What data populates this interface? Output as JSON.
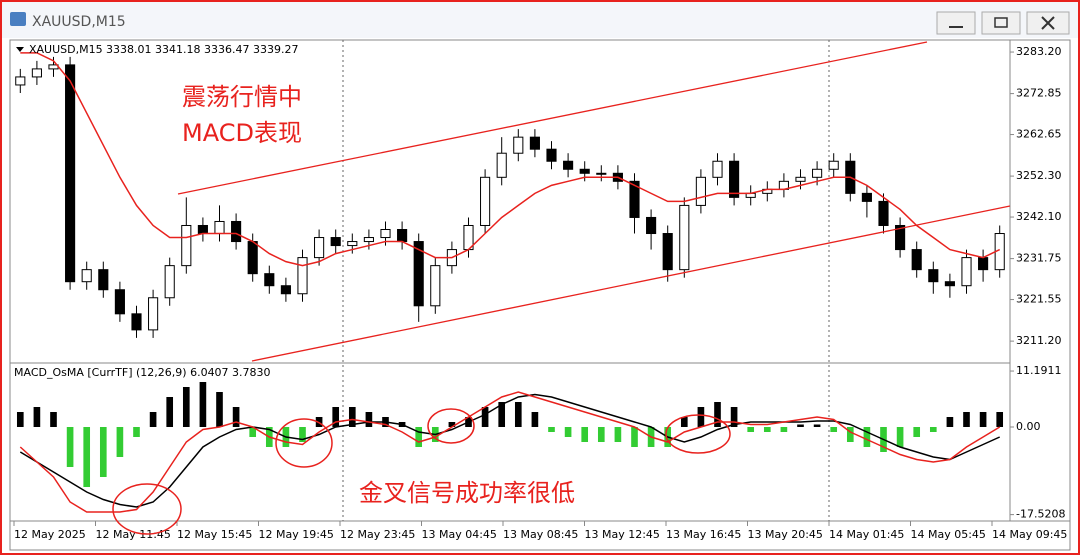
{
  "window": {
    "title": "XAUUSD,M15"
  },
  "x_axis": {
    "labels": [
      "12 May 2025",
      "12 May 11:45",
      "12 May 15:45",
      "12 May 19:45",
      "12 May 23:45",
      "13 May 04:45",
      "13 May 08:45",
      "13 May 12:45",
      "13 May 16:45",
      "13 May 20:45",
      "14 May 01:45",
      "14 May 05:45",
      "14 May 09:45"
    ]
  },
  "chart_data": [
    {
      "type": "candlestick",
      "title": "XAUUSD,M15",
      "quote": "3338.01 3341.18 3336.47 3339.27",
      "annotations": [
        "震荡行情中",
        "MACD表现"
      ],
      "up_color": "#ffffff",
      "down_color": "#000000",
      "open": [
        3275,
        3277,
        3279,
        3280,
        3226,
        3229,
        3224,
        3218,
        3214,
        3222,
        3230,
        3240,
        3238,
        3241,
        3236,
        3228,
        3225,
        3223,
        3232,
        3237,
        3235,
        3236,
        3237,
        3239,
        3236,
        3220,
        3230,
        3234,
        3240,
        3252,
        3258,
        3262,
        3259,
        3256,
        3254,
        3253,
        3253,
        3251,
        3242,
        3238,
        3229,
        3245,
        3252,
        3256,
        3247,
        3248,
        3249,
        3251,
        3252,
        3254,
        3256,
        3248,
        3246,
        3240,
        3234,
        3229,
        3226,
        3225,
        3232,
        3229
      ],
      "high": [
        3279,
        3281,
        3282,
        3282,
        3231,
        3231,
        3226,
        3220,
        3224,
        3232,
        3247,
        3242,
        3245,
        3243,
        3238,
        3230,
        3227,
        3234,
        3239,
        3239,
        3238,
        3239,
        3241,
        3241,
        3238,
        3232,
        3236,
        3242,
        3254,
        3262,
        3264,
        3264,
        3261,
        3258,
        3256,
        3255,
        3255,
        3253,
        3244,
        3240,
        3247,
        3254,
        3258,
        3258,
        3250,
        3251,
        3253,
        3254,
        3256,
        3258,
        3258,
        3250,
        3248,
        3242,
        3236,
        3231,
        3228,
        3234,
        3234,
        3240
      ],
      "low": [
        3273,
        3275,
        3277,
        3224,
        3224,
        3222,
        3216,
        3212,
        3212,
        3220,
        3228,
        3236,
        3236,
        3234,
        3226,
        3223,
        3221,
        3221,
        3230,
        3233,
        3233,
        3234,
        3235,
        3234,
        3216,
        3218,
        3228,
        3232,
        3238,
        3250,
        3256,
        3257,
        3254,
        3252,
        3251,
        3251,
        3249,
        3238,
        3234,
        3226,
        3227,
        3243,
        3250,
        3245,
        3245,
        3246,
        3247,
        3249,
        3250,
        3252,
        3246,
        3242,
        3238,
        3232,
        3227,
        3223,
        3222,
        3223,
        3226,
        3227
      ],
      "close": [
        3277,
        3279,
        3280,
        3226,
        3229,
        3224,
        3218,
        3214,
        3222,
        3230,
        3240,
        3238,
        3241,
        3236,
        3228,
        3225,
        3223,
        3232,
        3237,
        3235,
        3236,
        3237,
        3239,
        3236,
        3220,
        3230,
        3234,
        3240,
        3252,
        3258,
        3262,
        3259,
        3256,
        3254,
        3253,
        3253,
        3251,
        3242,
        3238,
        3229,
        3245,
        3252,
        3256,
        3247,
        3248,
        3249,
        3251,
        3252,
        3254,
        3256,
        3248,
        3246,
        3240,
        3234,
        3229,
        3226,
        3225,
        3232,
        3229,
        3238
      ],
      "series": [
        {
          "color": "#e8221e",
          "values": [
            3283,
            3283,
            3281,
            3276,
            3268,
            3260,
            3252,
            3245,
            3240,
            3237,
            3237,
            3238,
            3238,
            3238,
            3236,
            3233,
            3231,
            3230,
            3231,
            3233,
            3234,
            3235,
            3236,
            3236,
            3234,
            3232,
            3232,
            3234,
            3238,
            3242,
            3245,
            3248,
            3250,
            3251,
            3252,
            3252,
            3252,
            3250,
            3248,
            3246,
            3246,
            3247,
            3248,
            3248,
            3248,
            3249,
            3249,
            3250,
            3251,
            3252,
            3252,
            3250,
            3247,
            3244,
            3240,
            3237,
            3234,
            3233,
            3232,
            3234
          ]
        }
      ],
      "ylim": [
        3206,
        3285.7
      ],
      "yticks": [
        {
          "value": 3283.2,
          "label": "3283.20"
        },
        {
          "value": 3272.85,
          "label": "3272.85"
        },
        {
          "value": 3262.65,
          "label": "3262.65"
        },
        {
          "value": 3252.3,
          "label": "3252.30"
        },
        {
          "value": 3242.1,
          "label": "3242.10"
        },
        {
          "value": 3231.75,
          "label": "3231.75"
        },
        {
          "value": 3221.55,
          "label": "3221.55"
        },
        {
          "value": 3211.2,
          "label": "3211.20"
        }
      ]
    },
    {
      "type": "macd",
      "title": "MACD_OsMA [CurrTF] (12,26,9) 6.0407 3.7830",
      "annotations": [
        "金叉信号成功率很低"
      ],
      "positive_color": "#000000",
      "negative_color": "#33cc33",
      "histogram": [
        3,
        4,
        3,
        -8,
        -12,
        -10,
        -6,
        -2,
        3,
        6,
        8,
        9,
        7,
        4,
        -2,
        -4,
        -4,
        -3,
        2,
        4,
        4,
        3,
        2,
        1,
        -4,
        -3,
        1,
        2,
        4,
        5,
        5,
        3,
        -1,
        -2,
        -3,
        -3,
        -3,
        -4,
        -4,
        -4,
        2,
        4,
        5,
        4,
        -1,
        -1,
        -1,
        0.5,
        0.5,
        -1,
        -3,
        -4,
        -5,
        -4,
        -2,
        -1,
        2,
        3,
        3,
        3
      ],
      "series": [
        {
          "color": "#000000",
          "values": [
            -5,
            -7,
            -9,
            -11,
            -13,
            -14.5,
            -15.5,
            -16,
            -15,
            -12,
            -8,
            -4,
            -2,
            -0.5,
            0,
            -0.5,
            -2,
            -2.5,
            -1.5,
            0,
            0.5,
            1,
            1,
            0.5,
            -1,
            -1.5,
            -0.5,
            1,
            2.5,
            4.5,
            6,
            6.5,
            6,
            5,
            4,
            3,
            2,
            1,
            0,
            -2,
            -3,
            -2,
            -0.5,
            0.5,
            1,
            1,
            1,
            1,
            1.2,
            1.2,
            0.5,
            -1,
            -2.5,
            -4,
            -5,
            -6,
            -6.5,
            -5,
            -3.5,
            -2
          ]
        },
        {
          "color": "#e8221e",
          "values": [
            -4,
            -7,
            -10,
            -15,
            -17,
            -17,
            -17,
            -16.5,
            -13,
            -8,
            -3,
            -0.5,
            0,
            1,
            0,
            -2,
            -3,
            -3.5,
            -1,
            1,
            1.5,
            1,
            0.5,
            -1,
            -3,
            -2,
            0,
            2,
            4,
            6,
            7,
            6,
            5,
            4,
            3,
            2,
            1,
            0,
            -2,
            -3,
            -1,
            0,
            1,
            1,
            0.5,
            0.5,
            1,
            1.5,
            2,
            1.5,
            -1,
            -2.5,
            -4,
            -5.5,
            -6.5,
            -7,
            -6.5,
            -4,
            -2,
            0
          ]
        }
      ],
      "ylim": [
        -18.4,
        12.6
      ],
      "yticks": [
        {
          "value": 11.1911,
          "label": "11.1911"
        },
        {
          "value": 0,
          "label": "0.00"
        },
        {
          "value": -17.5208,
          "label": "-17.5208"
        }
      ]
    }
  ]
}
